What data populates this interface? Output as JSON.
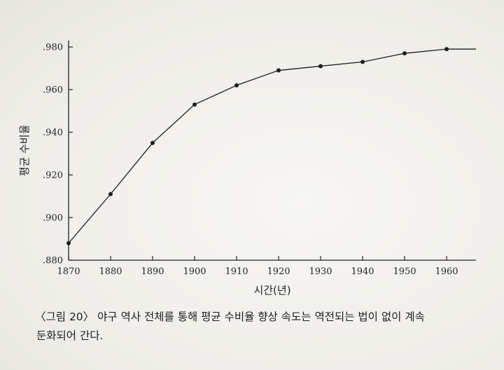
{
  "chart_data": {
    "type": "line",
    "title": "",
    "xlabel": "시간(년)",
    "ylabel": "평균 수비율",
    "x": [
      1870,
      1880,
      1890,
      1900,
      1910,
      1920,
      1930,
      1940,
      1950,
      1960
    ],
    "x_end": 1967,
    "series": [
      {
        "values": [
          0.888,
          0.911,
          0.935,
          0.953,
          0.962,
          0.969,
          0.971,
          0.973,
          0.977,
          0.979
        ],
        "end_value": 0.979
      }
    ],
    "xlim": [
      1870,
      1967
    ],
    "ylim": [
      0.88,
      0.983
    ],
    "yticks": [
      0.88,
      0.9,
      0.92,
      0.94,
      0.96,
      0.98
    ],
    "ytick_labels": [
      ".880",
      ".900",
      ".920",
      ".940",
      ".960",
      ".980"
    ],
    "xtick_labels": [
      "1870",
      "1880",
      "1890",
      "1900",
      "1910",
      "1920",
      "1930",
      "1940",
      "1950",
      "1960"
    ],
    "grid": false,
    "legend": "none",
    "line_color": "#1e1e1e"
  },
  "caption": {
    "line1": "〈그림 20〉 야구 역사 전체를 통해 평균 수비율 향상 속도는 역전되는 법이 없이 계속",
    "line2": "둔화되어 간다."
  }
}
